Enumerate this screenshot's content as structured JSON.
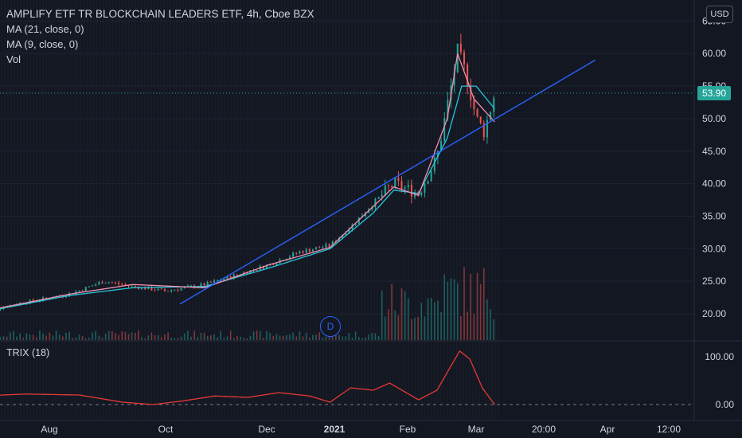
{
  "legend": {
    "title": "AMPLIFY ETF TR BLOCKCHAIN LEADERS ETF, 4h, Cboe BZX",
    "ma21": "MA (21, close, 0)",
    "ma9": "MA (9, close, 0)",
    "vol": "Vol"
  },
  "trix_label": "TRIX (18)",
  "currency_button": "USD",
  "last_price_tag": "53.90",
  "event_marker": "D",
  "colors": {
    "background": "#131722",
    "trendline": "#2962ff",
    "ma21": "#26c6da",
    "ma9": "#f48fb1",
    "trix": "#e53935",
    "up": "#26a69a",
    "down": "#ef5350",
    "price_tag": "#26a69a"
  },
  "chart_data": [
    {
      "type": "candlestick",
      "symbol": "AMPLIFY ETF TR BLOCKCHAIN LEADERS ETF",
      "interval": "4h",
      "exchange": "Cboe BZX",
      "ylim": [
        15,
        65
      ],
      "y_ticks": [
        "20.00",
        "25.00",
        "30.00",
        "35.00",
        "40.00",
        "45.00",
        "50.00",
        "55.00",
        "60.00",
        "65.00"
      ],
      "x_ticks": [
        "Aug",
        "Oct",
        "Dec",
        "2021",
        "Feb",
        "Mar",
        "20:00",
        "Apr",
        "12:00"
      ],
      "last_price": 53.9,
      "price_path": {
        "dates": [
          "2020-07-03",
          "2020-07-20",
          "2020-08-15",
          "2020-09-01",
          "2020-09-15",
          "2020-10-01",
          "2020-10-20",
          "2020-11-05",
          "2020-11-20",
          "2020-12-05",
          "2020-12-20",
          "2021-01-01",
          "2021-01-10",
          "2021-01-20",
          "2021-02-01",
          "2021-02-10",
          "2021-02-15",
          "2021-02-20",
          "2021-02-25",
          "2021-03-01",
          "2021-03-05",
          "2021-03-10"
        ],
        "close": [
          20.2,
          21.5,
          23.0,
          25.0,
          24.2,
          23.5,
          24.5,
          26.0,
          27.5,
          29.5,
          30.5,
          34.0,
          37.0,
          40.0,
          38.5,
          44.0,
          52.0,
          60.0,
          56.0,
          50.0,
          48.0,
          53.9
        ]
      },
      "ma21": {
        "dates": [
          "2020-07-03",
          "2020-08-15",
          "2020-09-15",
          "2020-10-20",
          "2020-11-20",
          "2020-12-20",
          "2021-01-10",
          "2021-01-20",
          "2021-02-01",
          "2021-02-15",
          "2021-02-22",
          "2021-03-01",
          "2021-03-10"
        ],
        "values": [
          20.2,
          22.8,
          24.0,
          24.2,
          27.0,
          30.0,
          35.5,
          39.0,
          38.5,
          47.0,
          55.0,
          55.0,
          51.5
        ]
      },
      "ma9": {
        "dates": [
          "2020-07-03",
          "2020-08-15",
          "2020-09-15",
          "2020-10-20",
          "2020-11-20",
          "2020-12-20",
          "2021-01-10",
          "2021-01-20",
          "2021-02-01",
          "2021-02-15",
          "2021-02-20",
          "2021-02-28",
          "2021-03-10"
        ],
        "values": [
          20.3,
          23.0,
          24.5,
          24.0,
          27.5,
          30.2,
          36.5,
          39.5,
          38.2,
          50.0,
          60.0,
          53.0,
          49.5
        ]
      },
      "trendline": {
        "start": {
          "date": "2020-10-08",
          "price": 21.5
        },
        "end": {
          "date": "2021-04-28",
          "price": 59.0
        }
      },
      "volume_note": "relative bar heights only; no volume scale shown"
    },
    {
      "type": "line",
      "name": "TRIX (18)",
      "ylim": [
        -10,
        130
      ],
      "y_ticks": [
        "0.00",
        "100.00"
      ],
      "dates": [
        "2020-07-03",
        "2020-07-25",
        "2020-08-20",
        "2020-09-10",
        "2020-09-25",
        "2020-10-10",
        "2020-10-25",
        "2020-11-10",
        "2020-11-25",
        "2020-12-10",
        "2020-12-20",
        "2020-12-30",
        "2021-01-10",
        "2021-01-18",
        "2021-02-01",
        "2021-02-10",
        "2021-02-16",
        "2021-02-21",
        "2021-02-26",
        "2021-03-04",
        "2021-03-10"
      ],
      "values": [
        18,
        22,
        20,
        5,
        0,
        8,
        18,
        15,
        25,
        18,
        5,
        35,
        30,
        45,
        10,
        30,
        75,
        112,
        95,
        35,
        0
      ]
    }
  ]
}
